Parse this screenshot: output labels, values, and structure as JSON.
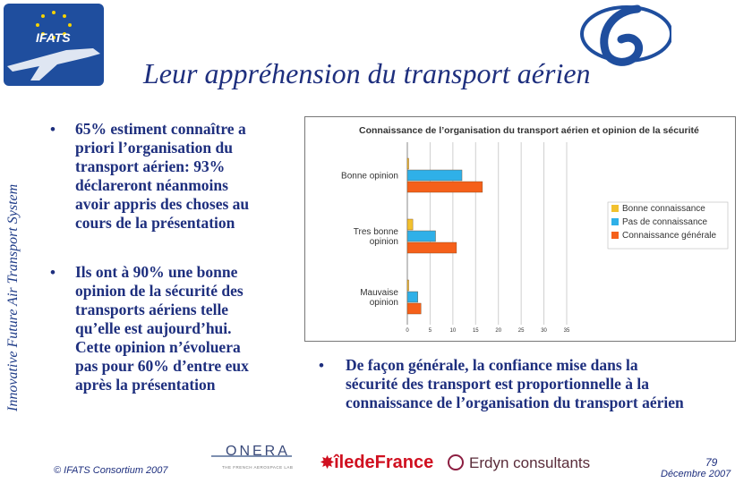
{
  "logo": {
    "text": "IFATS"
  },
  "side_label": "Innovative Future Air Transport System",
  "title": "Leur appréhension du transport aérien",
  "left_bullets": [
    [
      "65% estiment connaître a",
      "priori l’organisation du",
      "transport aérien: 93%",
      "déclareront néanmoins",
      "avoir appris des choses au",
      "cours de la présentation"
    ],
    [
      "Ils ont à 90% une bonne",
      "opinion de la sécurité des",
      "transports aériens telle",
      "qu’elle est aujourd’hui.",
      "Cette opinion n’évoluera",
      "pas pour 60% d’entre eux",
      "après la présentation"
    ]
  ],
  "right_bullet": [
    "De façon générale, la confiance mise dans la",
    "sécurité des transport est proportionnelle à la",
    "connaissance de l’organisation du transport aérien"
  ],
  "bullet_char": "•",
  "chart_data": {
    "type": "bar",
    "orientation": "horizontal",
    "title": "Connaissance de l’organisation du transport aérien et opinion de la sécurité",
    "categories": [
      "Bonne opinion",
      "Très bonne opinion",
      "Mauvaise opinion"
    ],
    "category_lines": [
      [
        "Bonne opinion"
      ],
      [
        "Tres bonne",
        "opinion"
      ],
      [
        "Mauvaise",
        "opinion"
      ]
    ],
    "series": [
      {
        "name": "Bonne connaissance",
        "color": "#f2c12e",
        "values": [
          0.3,
          1.2,
          0.3
        ]
      },
      {
        "name": "Pas de connaissance",
        "color": "#2fb0e8",
        "values": [
          12.0,
          6.2,
          2.3
        ]
      },
      {
        "name": "Connaissance générale",
        "color": "#f5601a",
        "values": [
          16.5,
          10.8,
          3.0
        ]
      }
    ],
    "xlim": [
      0,
      35
    ],
    "ticks": [
      "0",
      "5",
      "10",
      "15",
      "20",
      "25",
      "30",
      "35"
    ],
    "grid": true,
    "legend_position": "right"
  },
  "footer": {
    "copyright": "© IFATS Consortium 2007",
    "page_number": "79",
    "date": "Décembre 2007",
    "logos": [
      "ONERA",
      "THE FRENCH AEROSPACE LAB",
      "îledeFrance",
      "Erdyn consultants"
    ]
  }
}
